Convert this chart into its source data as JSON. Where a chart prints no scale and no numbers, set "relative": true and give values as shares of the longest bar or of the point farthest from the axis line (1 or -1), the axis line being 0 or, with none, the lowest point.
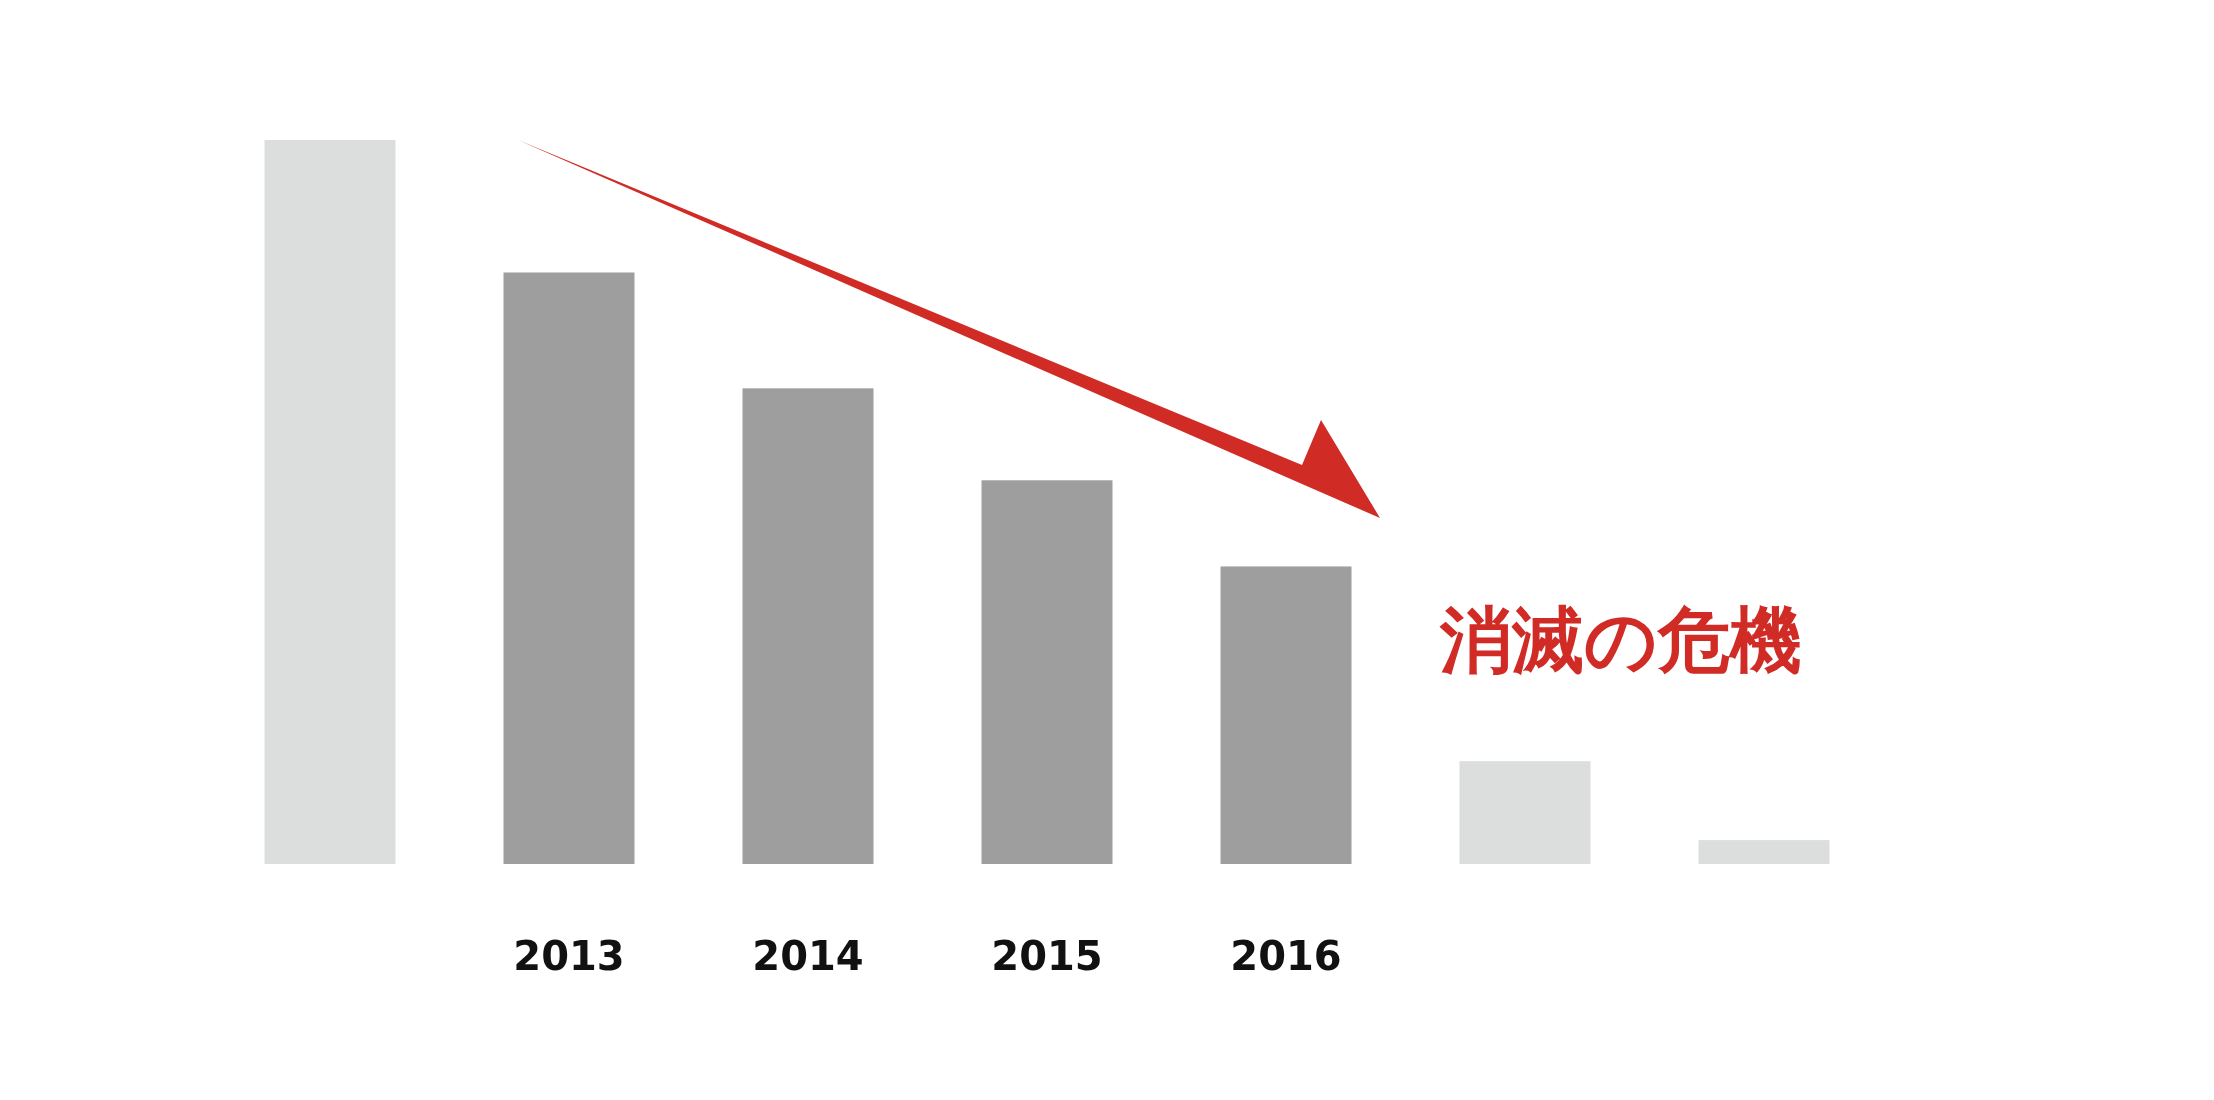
{
  "chart_data": {
    "type": "bar",
    "relative": true,
    "categories": [
      null,
      "2013",
      "2014",
      "2015",
      "2016",
      null,
      null
    ],
    "values": [
      1,
      0.817,
      0.657,
      0.53,
      0.411,
      0.142,
      0.033
    ],
    "colors": [
      "#dcdddd",
      "#9e9e9e",
      "#9e9e9e",
      "#9e9e9e",
      "#9e9e9e",
      "#dcdddd",
      "#dcdddd"
    ],
    "annotations": [
      "消滅の危機"
    ]
  }
}
